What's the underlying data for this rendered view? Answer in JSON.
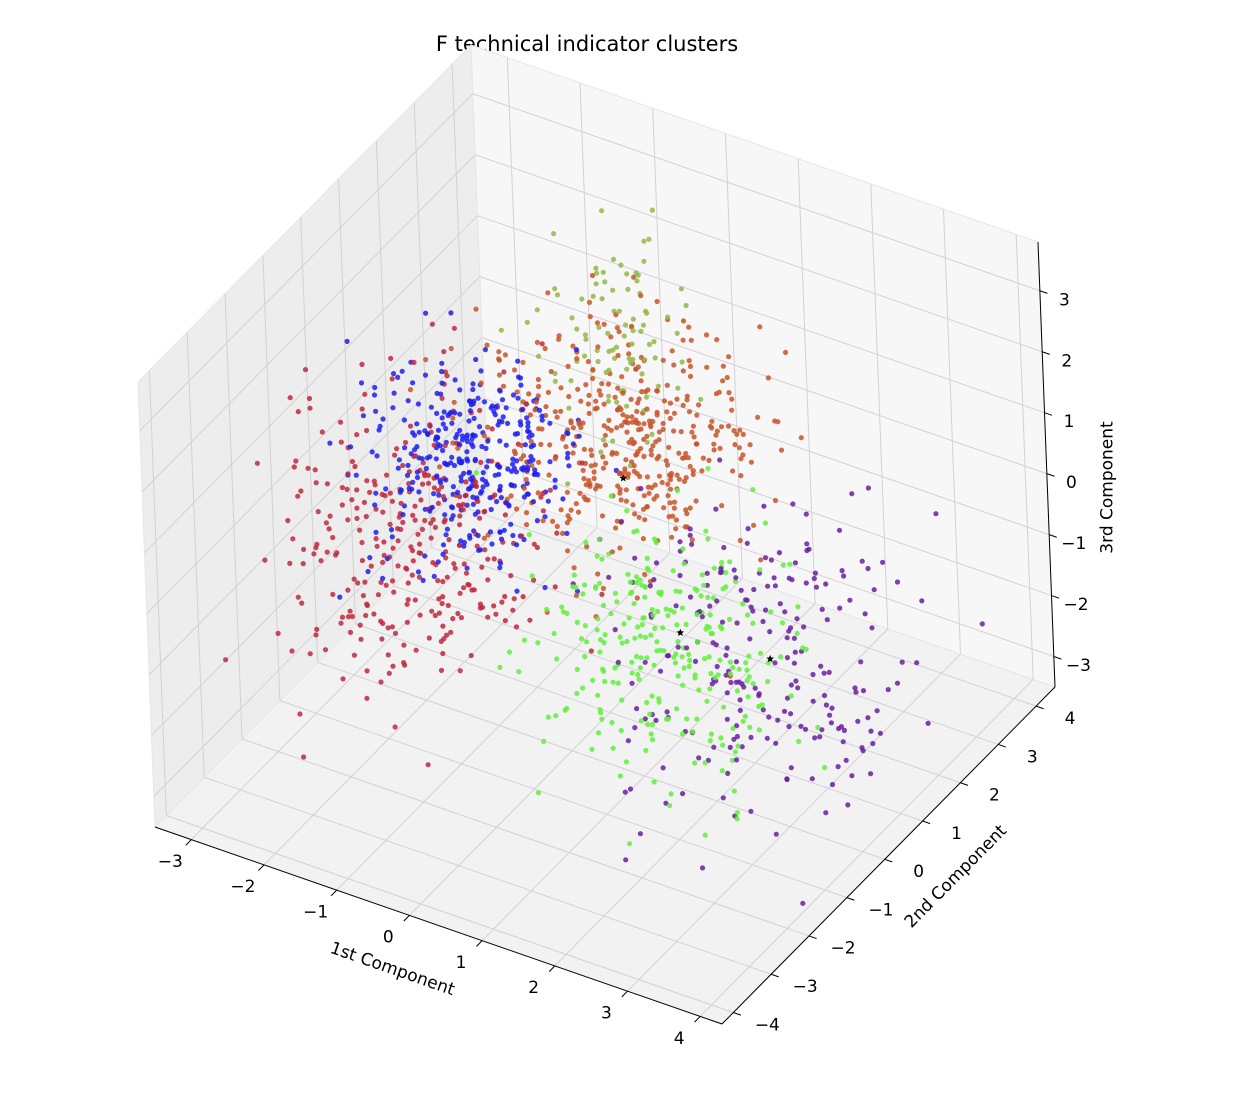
{
  "chart_data": {
    "type": "scatter",
    "projection": "3d",
    "title": "F technical indicator clusters",
    "xlabel": "1st Component",
    "ylabel": "2nd Component",
    "zlabel": "3rd Component",
    "xlim": [
      -3.5,
      4.3
    ],
    "ylim": [
      -4.3,
      4.5
    ],
    "zlim": [
      -3.5,
      3.8
    ],
    "xticks": [
      -3,
      -2,
      -1,
      0,
      1,
      2,
      3,
      4
    ],
    "yticks": [
      -4,
      -3,
      -2,
      -1,
      0,
      1,
      2,
      3,
      4
    ],
    "zticks": [
      -3,
      -2,
      -1,
      0,
      1,
      2,
      3
    ],
    "xtick_labels": [
      "−3",
      "−2",
      "−1",
      "0",
      "1",
      "2",
      "3",
      "4"
    ],
    "ytick_labels": [
      "−4",
      "−3",
      "−2",
      "−1",
      "0",
      "1",
      "2",
      "3",
      "4"
    ],
    "ztick_labels": [
      "−3",
      "−2",
      "−1",
      "0",
      "1",
      "2",
      "3"
    ],
    "grid": true,
    "series": [
      {
        "color": "#c0283c",
        "center": [
          -2.2,
          0.2,
          -1.0
        ],
        "spread": [
          0.8,
          1.0,
          1.1
        ],
        "count": 330
      },
      {
        "color": "#1e1ef0",
        "center": [
          -1.6,
          0.6,
          0.2
        ],
        "spread": [
          0.6,
          0.7,
          0.7
        ],
        "count": 340
      },
      {
        "color": "#c8552a",
        "center": [
          0.0,
          1.6,
          0.5
        ],
        "spread": [
          0.8,
          0.8,
          0.8
        ],
        "count": 420
      },
      {
        "color": "#93b848",
        "center": [
          -0.5,
          2.5,
          1.6
        ],
        "spread": [
          0.5,
          0.6,
          0.8
        ],
        "count": 95
      },
      {
        "color": "#62f03c",
        "center": [
          1.8,
          -0.8,
          -0.6
        ],
        "spread": [
          0.8,
          0.8,
          0.9
        ],
        "count": 270
      },
      {
        "color": "#6a1fa2",
        "center": [
          2.6,
          0.2,
          -1.1
        ],
        "spread": [
          0.9,
          1.1,
          1.2
        ],
        "count": 230
      }
    ],
    "centroids": [
      {
        "x": 0.2,
        "y": 1.2,
        "z": 0.3
      },
      {
        "x": 1.9,
        "y": -0.6,
        "z": -0.4
      },
      {
        "x": 2.7,
        "y": 0.2,
        "z": -1.0
      }
    ]
  }
}
